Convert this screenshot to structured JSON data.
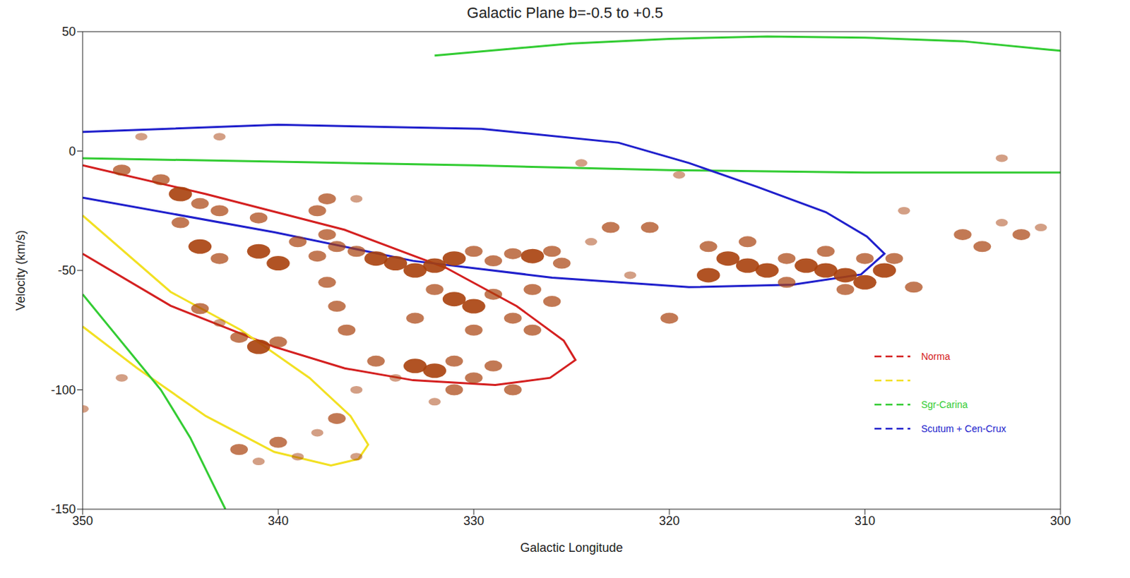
{
  "chart_data": {
    "type": "scatter",
    "title": "Galactic Plane b=-0.5 to +0.5",
    "x_label": "Galactic Longitude",
    "y_label": "Velocity (km/s)",
    "xlim": [
      350,
      300
    ],
    "ylim": [
      -150,
      50
    ],
    "xticks": [
      350,
      340,
      330,
      320,
      310,
      300
    ],
    "yticks": [
      -150,
      -100,
      -50,
      0,
      50
    ],
    "legend": "lower right",
    "series": [
      {
        "name": "Norma",
        "color": "#d42020",
        "type": "line",
        "line_style": "solid",
        "x": [
          350,
          343.7,
          336.6,
          331.4,
          327.8,
          325.4,
          324.8,
          326.1,
          328.9,
          333.1,
          336.6,
          340.2,
          345.5,
          350
        ],
        "values": [
          -6,
          -18,
          -33,
          -49,
          -65,
          -79.4,
          -87.5,
          -95,
          -98,
          -96,
          -91,
          -82,
          -64.8,
          -43
        ]
      },
      {
        "name": null,
        "color": "#f2e022",
        "type": "line",
        "line_style": "solid",
        "x": [
          350,
          345.5,
          341.9,
          338.4,
          336.3,
          335.4,
          335.9,
          337.3,
          340.2,
          343.7,
          347.2,
          350
        ],
        "values": [
          -27,
          -59,
          -75,
          -95,
          -111,
          -123,
          -129,
          -131.7,
          -126,
          -111,
          -91,
          -73.5
        ]
      },
      {
        "name": "Sgr-Carina",
        "color": "#33cc33",
        "type": "line",
        "line_style": "solid",
        "x": [
          332,
          325,
          320,
          315,
          310,
          305,
          300
        ],
        "values": [
          40,
          45,
          47,
          48,
          47.5,
          46,
          42
        ]
      },
      {
        "name": "Sgr-Carina",
        "color": "#33cc33",
        "type": "line",
        "line_style": "solid",
        "x": [
          350,
          340,
          330,
          320,
          310,
          300
        ],
        "values": [
          -3,
          -4.5,
          -6,
          -8,
          -9,
          -9
        ]
      },
      {
        "name": "Sgr-Carina",
        "color": "#33cc33",
        "type": "line",
        "line_style": "solid",
        "x": [
          350,
          348,
          346,
          344.5,
          343.3,
          342.7
        ],
        "values": [
          -60,
          -80,
          -100,
          -120,
          -140,
          -150
        ]
      },
      {
        "name": "Scutum + Cen-Crux",
        "color": "#2020cc",
        "type": "line",
        "line_style": "solid",
        "x": [
          350,
          340,
          329.6,
          322.6,
          319,
          315.5,
          312,
          309.9,
          309,
          310.2,
          313.7,
          319,
          326,
          333.1,
          340.2,
          350
        ],
        "values": [
          8,
          11,
          9.3,
          3.5,
          -5,
          -15,
          -25.6,
          -35.8,
          -43,
          -51.7,
          -56,
          -57,
          -53,
          -46,
          -34,
          -19.5
        ]
      }
    ],
    "emission": {
      "color": "#a8400c",
      "x": [
        348,
        346,
        345,
        344,
        343,
        341,
        338,
        336,
        345,
        344,
        343,
        341,
        340,
        339,
        338,
        337,
        336,
        335,
        334,
        333,
        332,
        331,
        330,
        329,
        328,
        327,
        326,
        325.5,
        337.5,
        337.5,
        337.5,
        337,
        336.5,
        331,
        330,
        329,
        328,
        327,
        330,
        333,
        332,
        327,
        326,
        335,
        333,
        332,
        331,
        330,
        329,
        328,
        331,
        334,
        332,
        344,
        342,
        341,
        340,
        343,
        348,
        350,
        342,
        340,
        338,
        337,
        336,
        339,
        341,
        336,
        323,
        321,
        322,
        320,
        324,
        318,
        317,
        316,
        315,
        314,
        313,
        312,
        311,
        310,
        309,
        308.5,
        312,
        310,
        316,
        318,
        314,
        311,
        307.5,
        305,
        304,
        303,
        302,
        301,
        303,
        308,
        347,
        343,
        324.5,
        319.5
      ],
      "values": [
        -8,
        -12,
        -18,
        -22,
        -25,
        -28,
        -25,
        -20,
        -30,
        -40,
        -45,
        -42,
        -47,
        -38,
        -44,
        -40,
        -42,
        -45,
        -47,
        -50,
        -48,
        -45,
        -42,
        -46,
        -43,
        -44,
        -42,
        -47,
        -20,
        -35,
        -55,
        -65,
        -75,
        -62,
        -65,
        -60,
        -70,
        -75,
        -75,
        -70,
        -58,
        -58,
        -63,
        -88,
        -90,
        -92,
        -88,
        -95,
        -90,
        -100,
        -100,
        -95,
        -105,
        -66,
        -78,
        -82,
        -80,
        -72,
        -95,
        -108,
        -125,
        -122,
        -118,
        -112,
        -128,
        -128,
        -130,
        -100,
        -32,
        -32,
        -52,
        -70,
        -38,
        -40,
        -45,
        -48,
        -50,
        -45,
        -48,
        -50,
        -52,
        -55,
        -50,
        -45,
        -42,
        -45,
        -38,
        -52,
        -55,
        -58,
        -57,
        -35,
        -40,
        -30,
        -35,
        -32,
        -3,
        -25,
        6,
        6,
        -5,
        -10
      ],
      "intensity": [
        2,
        2,
        3,
        2,
        2,
        2,
        2,
        1,
        2,
        3,
        2,
        3,
        3,
        2,
        2,
        2,
        2,
        3,
        3,
        3,
        3,
        3,
        2,
        2,
        2,
        3,
        2,
        2,
        2,
        2,
        2,
        2,
        2,
        3,
        3,
        2,
        2,
        2,
        2,
        2,
        2,
        2,
        2,
        2,
        3,
        3,
        2,
        2,
        2,
        2,
        2,
        1,
        1,
        2,
        2,
        3,
        2,
        1,
        1,
        1,
        2,
        2,
        1,
        2,
        1,
        1,
        1,
        1,
        2,
        2,
        1,
        2,
        1,
        2,
        3,
        3,
        3,
        2,
        3,
        3,
        3,
        3,
        3,
        2,
        2,
        2,
        2,
        3,
        2,
        2,
        2,
        2,
        2,
        1,
        2,
        1,
        1,
        1,
        1,
        1,
        1,
        1
      ]
    }
  }
}
